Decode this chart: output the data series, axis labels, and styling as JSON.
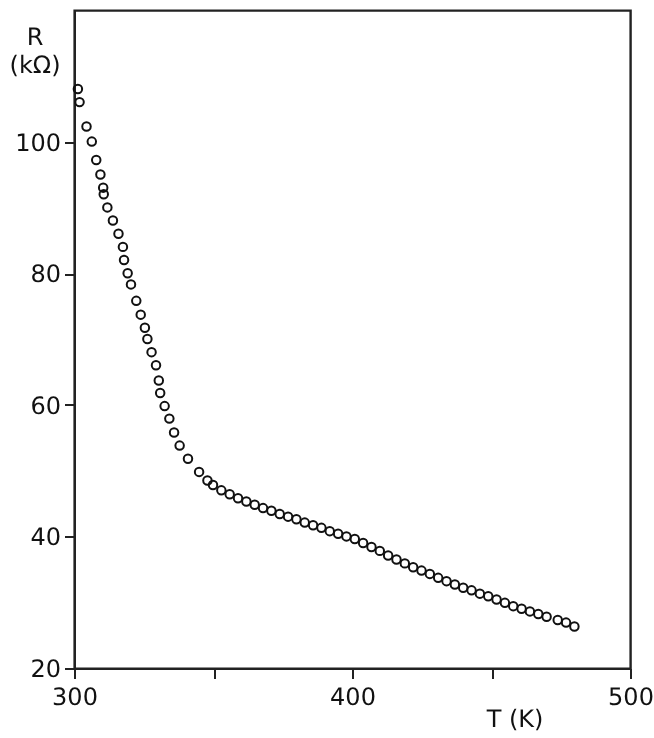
{
  "chart_data": {
    "type": "scatter",
    "xlabel": "T (K)",
    "ylabel": "R (kΩ)",
    "x": [
      301.4,
      302,
      304.5,
      306.4,
      308,
      309.5,
      310.5,
      310.7,
      312,
      314,
      316,
      317.6,
      318,
      319.3,
      320.5,
      322.4,
      324,
      325.5,
      326.4,
      327.9,
      329.5,
      330.5,
      331,
      332.6,
      334.3,
      336,
      338,
      341,
      345,
      348,
      350,
      353,
      356,
      359,
      362,
      365,
      368,
      371,
      374,
      377,
      380,
      383,
      386,
      389,
      392,
      395,
      398,
      401,
      404,
      407,
      410,
      413,
      416,
      419,
      422,
      425,
      428,
      431,
      434,
      437,
      440,
      443,
      446,
      449,
      452,
      455,
      458,
      461,
      464,
      467,
      470,
      474,
      477,
      480
    ],
    "values": [
      108,
      106,
      102.3,
      100,
      97.2,
      95,
      93,
      92,
      90,
      88,
      86,
      84,
      82,
      80,
      78.3,
      75.8,
      73.7,
      71.7,
      70,
      68,
      66,
      63.7,
      61.8,
      59.8,
      57.9,
      55.8,
      53.8,
      51.8,
      49.8,
      48.5,
      47.8,
      47,
      46.4,
      45.8,
      45.3,
      44.8,
      44.3,
      43.9,
      43.4,
      43,
      42.6,
      42.1,
      41.7,
      41.3,
      40.8,
      40.4,
      40,
      39.6,
      39,
      38.4,
      37.8,
      37.1,
      36.5,
      35.9,
      35.3,
      34.8,
      34.3,
      33.7,
      33.2,
      32.7,
      32.2,
      31.8,
      31.3,
      30.9,
      30.4,
      29.9,
      29.4,
      29,
      28.6,
      28.2,
      27.8,
      27.3,
      26.9,
      26.3
    ],
    "color": "#111111",
    "marker": "circle",
    "grid": false,
    "xlim": [
      300,
      500
    ],
    "xticks": [
      300,
      {
        "value": 350,
        "label": null
      },
      400,
      {
        "value": 450,
        "label": null
      },
      500
    ],
    "ylim": [
      20,
      120
    ],
    "yticks": [
      20,
      40,
      60,
      80,
      100
    ]
  }
}
